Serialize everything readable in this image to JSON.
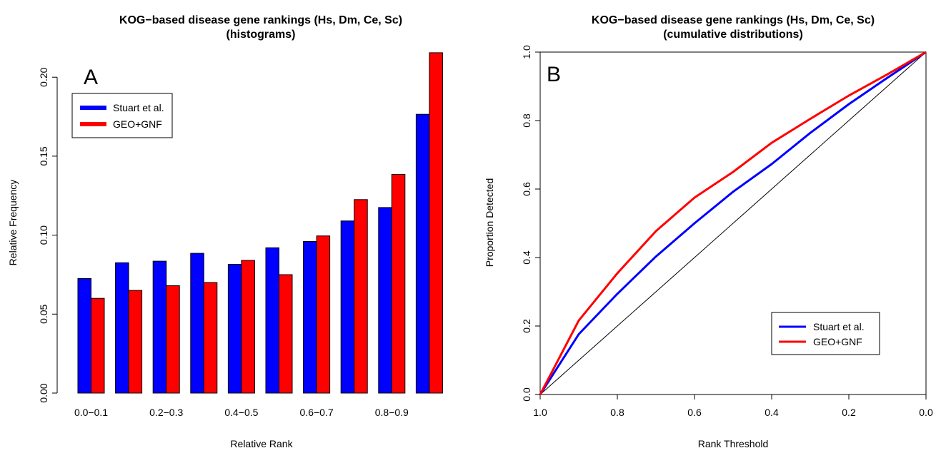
{
  "chart_data": [
    {
      "type": "bar",
      "panel_label": "A",
      "title": "KOG−based disease gene rankings (Hs, Dm, Ce, Sc)",
      "subtitle": "(histograms)",
      "xlabel": "Relative Rank",
      "ylabel": "Relative Frequency",
      "ylim": [
        0,
        0.215
      ],
      "yticks": [
        "0.00",
        "0.05",
        "0.10",
        "0.15",
        "0.20"
      ],
      "categories": [
        "0.0−0.1",
        "0.1−0.2",
        "0.2−0.3",
        "0.3−0.4",
        "0.4−0.5",
        "0.5−0.6",
        "0.6−0.7",
        "0.7−0.8",
        "0.8−0.9",
        "0.9−1.0"
      ],
      "shown_tick_labels": [
        "0.0−0.1",
        "0.2−0.3",
        "0.4−0.5",
        "0.6−0.7",
        "0.8−0.9"
      ],
      "series": [
        {
          "name": "Stuart et al.",
          "color": "#0000ff",
          "values": [
            0.0725,
            0.0825,
            0.0835,
            0.0885,
            0.0815,
            0.092,
            0.096,
            0.109,
            0.1175,
            0.1765
          ]
        },
        {
          "name": "GEO+GNF",
          "color": "#ff0000",
          "values": [
            0.06,
            0.065,
            0.068,
            0.07,
            0.084,
            0.075,
            0.0995,
            0.1225,
            0.1385,
            0.2155
          ]
        }
      ],
      "legend_position": "top-left",
      "grid": false
    },
    {
      "type": "line",
      "panel_label": "B",
      "title": "KOG−based disease gene rankings (Hs, Dm, Ce, Sc)",
      "subtitle": "(cumulative distributions)",
      "xlabel": "Rank Threshold",
      "ylabel": "Proportion Detected",
      "xlim": [
        1.0,
        0.0
      ],
      "ylim": [
        0,
        1.0
      ],
      "xticks": [
        "1.0",
        "0.8",
        "0.6",
        "0.4",
        "0.2",
        "0.0"
      ],
      "yticks": [
        "0.0",
        "0.2",
        "0.4",
        "0.6",
        "0.8",
        "1.0"
      ],
      "x": [
        1.0,
        0.9,
        0.8,
        0.7,
        0.6,
        0.5,
        0.4,
        0.3,
        0.2,
        0.1,
        0.0
      ],
      "series": [
        {
          "name": "Stuart et al.",
          "color": "#0000ff",
          "values": [
            0.0,
            0.176,
            0.294,
            0.403,
            0.5,
            0.592,
            0.673,
            0.764,
            0.848,
            0.925,
            1.0
          ]
        },
        {
          "name": "GEO+GNF",
          "color": "#ff0000",
          "values": [
            0.0,
            0.216,
            0.354,
            0.477,
            0.575,
            0.65,
            0.735,
            0.805,
            0.873,
            0.935,
            1.0
          ]
        },
        {
          "name": "",
          "color": "#000000",
          "values": [
            0.0,
            0.1,
            0.2,
            0.3,
            0.4,
            0.5,
            0.6,
            0.7,
            0.8,
            0.9,
            1.0
          ]
        }
      ],
      "legend_position": "bottom-right",
      "grid": false
    }
  ]
}
